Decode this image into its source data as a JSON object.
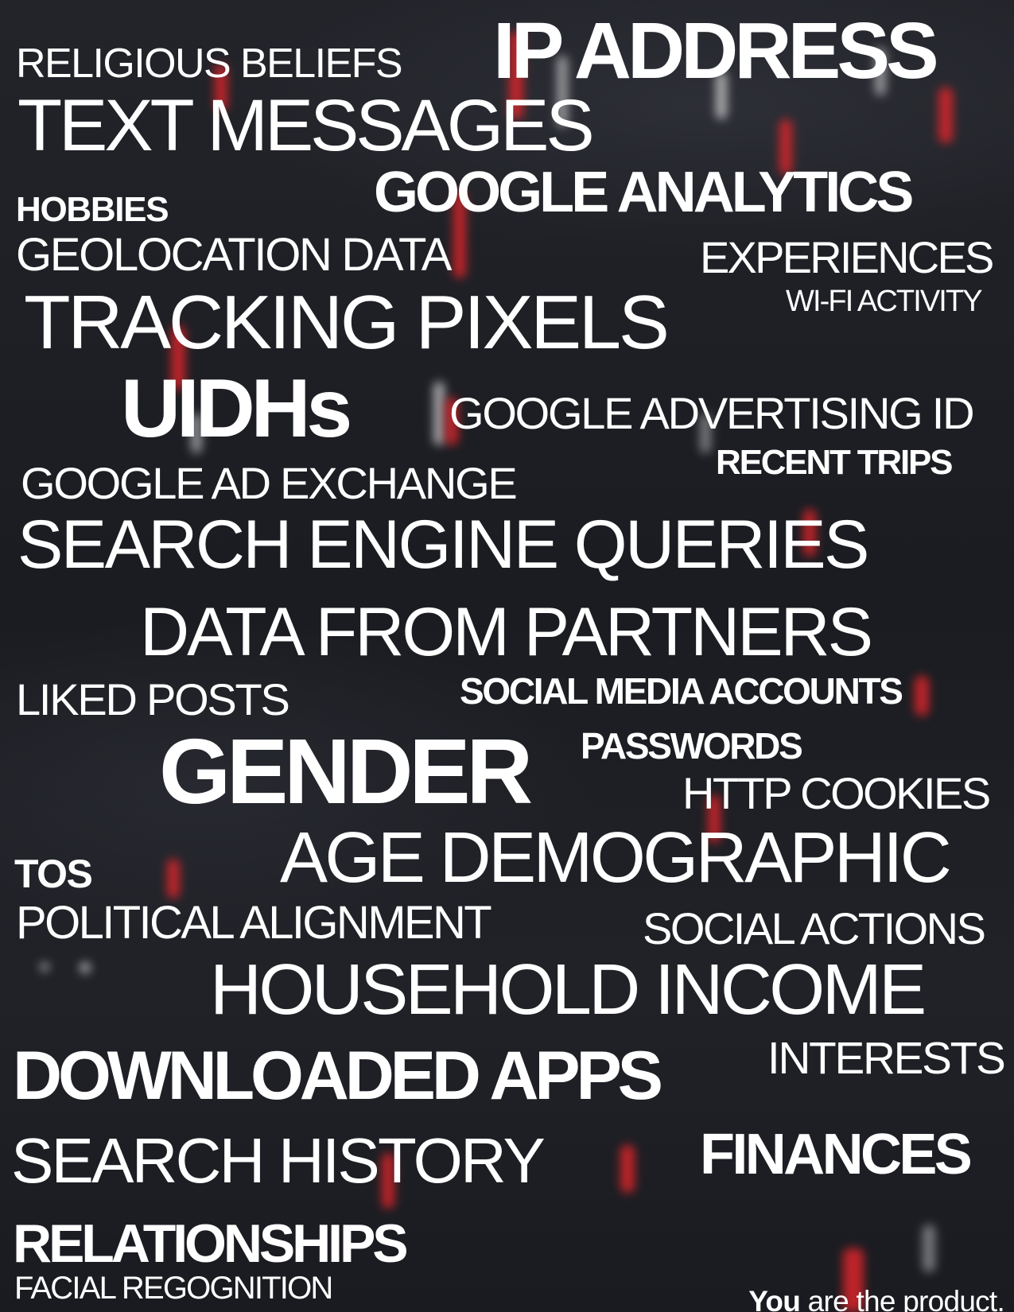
{
  "palette": {
    "background": "#1d1f25",
    "text": "#ffffff",
    "accent_red": "#e8262b"
  },
  "words": {
    "religious_beliefs": "RELIGIOUS BELIEFS",
    "ip_address": "IP ADDRESS",
    "text_messages": "TEXT MESSAGES",
    "hobbies": "HOBBIES",
    "google_analytics": "GOOGLE ANALYTICS",
    "geolocation_data": "GEOLOCATION DATA",
    "experiences": "EXPERIENCES",
    "wifi_activity": "WI-FI ACTIVITY",
    "tracking_pixels": "TRACKING PIXELS",
    "uidhs": "UIDHs",
    "google_advertising_id": "GOOGLE ADVERTISING ID",
    "recent_trips": "RECENT TRIPS",
    "google_ad_exchange": "GOOGLE AD EXCHANGE",
    "search_engine_queries": "SEARCH ENGINE QUERIES",
    "data_from_partners": "DATA FROM PARTNERS",
    "liked_posts": "LIKED POSTS",
    "social_media_accounts": "SOCIAL MEDIA ACCOUNTS",
    "gender": "GENDER",
    "passwords": "PASSWORDS",
    "http_cookies": "HTTP COOKIES",
    "tos": "TOS",
    "age_demographic": "AGE DEMOGRAPHIC",
    "political_alignment": "POLITICAL ALIGNMENT",
    "social_actions": "SOCIAL ACTIONS",
    "household_income": "HOUSEHOLD INCOME",
    "downloaded_apps": "DOWNLOADED APPS",
    "interests": "INTERESTS",
    "search_history": "SEARCH HISTORY",
    "finances": "FINANCES",
    "relationships": "RELATIONSHIPS",
    "facial_recognition": "FACIAL REGOGNITION"
  },
  "tagline": {
    "emphasis": "You",
    "rest": "are the product."
  }
}
